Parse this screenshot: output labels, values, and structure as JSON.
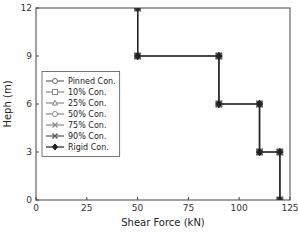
{
  "chart_data": {
    "type": "line",
    "xlabel": "Shear Force (kN)",
    "ylabel": "Heph (m)",
    "xlim": [
      0,
      125
    ],
    "ylim": [
      0,
      12
    ],
    "xticks": [
      0,
      25,
      50,
      75,
      100,
      125
    ],
    "yticks": [
      0,
      3,
      6,
      9,
      12
    ],
    "grid": false,
    "legend": "left",
    "x": [
      50,
      50,
      90,
      90,
      110,
      110,
      120,
      120
    ],
    "series": [
      {
        "name": "Pinned Con.",
        "color": "#666666",
        "marker": "open-circle",
        "line_style": "solid",
        "values": [
          12,
          9,
          9,
          6,
          6,
          3,
          3,
          0
        ]
      },
      {
        "name": "10% Con.",
        "color": "#888888",
        "marker": "open-square",
        "line_style": "solid",
        "values": [
          12,
          9,
          9,
          6,
          6,
          3,
          3,
          0
        ]
      },
      {
        "name": "25% Con.",
        "color": "#888888",
        "marker": "open-triangle",
        "line_style": "solid",
        "values": [
          12,
          9,
          9,
          6,
          6,
          3,
          3,
          0
        ]
      },
      {
        "name": "50% Con.",
        "color": "#888888",
        "marker": "open-circle",
        "line_style": "solid",
        "values": [
          12,
          9,
          9,
          6,
          6,
          3,
          3,
          0
        ]
      },
      {
        "name": "75% Con.",
        "color": "#888888",
        "marker": "x",
        "line_style": "solid",
        "values": [
          12,
          9,
          9,
          6,
          6,
          3,
          3,
          0
        ]
      },
      {
        "name": "90% Con.",
        "color": "#555555",
        "marker": "x",
        "line_style": "solid",
        "values": [
          12,
          9,
          9,
          6,
          6,
          3,
          3,
          0
        ]
      },
      {
        "name": "Rigid Con.",
        "color": "#222222",
        "marker": "diamond",
        "line_style": "solid",
        "values": [
          12,
          9,
          9,
          6,
          6,
          3,
          3,
          0
        ]
      }
    ]
  }
}
